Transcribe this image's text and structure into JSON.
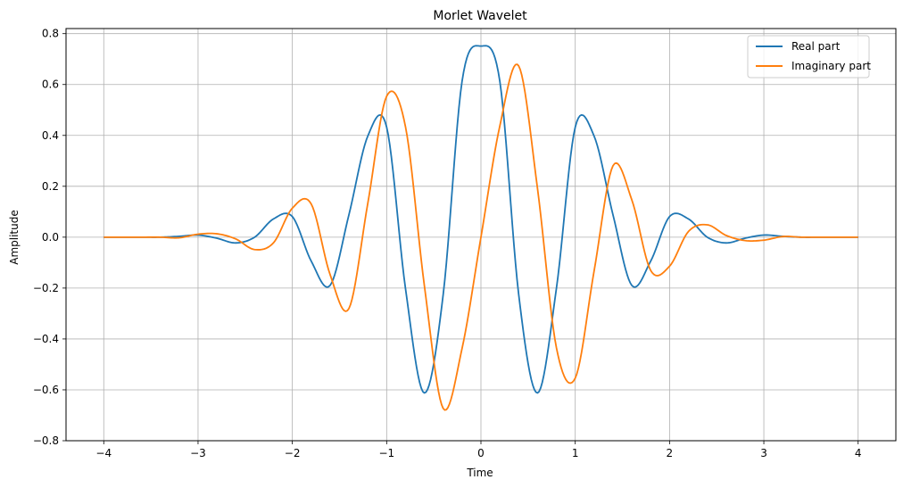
{
  "chart_data": {
    "type": "line",
    "title": "Morlet Wavelet",
    "xlabel": "Time",
    "ylabel": "Amplitude",
    "xlim": [
      -4.4,
      4.4
    ],
    "ylim": [
      -0.8,
      0.82
    ],
    "x_ticks": [
      -4,
      -3,
      -2,
      -1,
      0,
      1,
      2,
      3,
      4
    ],
    "x_tick_labels": [
      "−4",
      "−3",
      "−2",
      "−1",
      "0",
      "1",
      "2",
      "3",
      "4"
    ],
    "y_ticks": [
      -0.8,
      -0.6,
      -0.4,
      -0.2,
      0.0,
      0.2,
      0.4,
      0.6,
      0.8
    ],
    "y_tick_labels": [
      "−0.8",
      "−0.6",
      "−0.4",
      "−0.2",
      "0.0",
      "0.2",
      "0.4",
      "0.6",
      "0.8"
    ],
    "grid": true,
    "legend": "top-right",
    "x": [
      -4.0,
      -3.8,
      -3.6,
      -3.4,
      -3.2,
      -3.0,
      -2.8,
      -2.6,
      -2.4,
      -2.2,
      -2.0,
      -1.8,
      -1.6,
      -1.4,
      -1.2,
      -1.0,
      -0.8,
      -0.6,
      -0.4,
      -0.2,
      0.0,
      0.2,
      0.4,
      0.6,
      0.8,
      1.0,
      1.2,
      1.4,
      1.6,
      1.8,
      2.0,
      2.2,
      2.4,
      2.6,
      2.8,
      3.0,
      3.2,
      3.4,
      3.6,
      3.8,
      4.0
    ],
    "series": [
      {
        "name": "Real part",
        "color": "#1f77b4",
        "values": [
          0.0,
          0.0,
          0.0,
          0.0,
          0.0033,
          0.0083,
          -0.0042,
          -0.0226,
          0.0,
          0.0718,
          0.0809,
          -0.094,
          -0.1896,
          0.0883,
          0.3972,
          0.4325,
          -0.2023,
          -0.6123,
          -0.2242,
          0.6134,
          0.7511,
          0.6134,
          -0.2242,
          -0.6123,
          -0.2023,
          0.4325,
          0.3972,
          0.0883,
          -0.1896,
          -0.094,
          0.0809,
          0.0718,
          0.0,
          -0.0226,
          -0.0042,
          0.0083,
          0.0033,
          0.0,
          0.0,
          0.0,
          0.0
        ]
      },
      {
        "name": "Imaginary part",
        "color": "#ff7f0e",
        "values": [
          0.0,
          0.0,
          0.0,
          0.0,
          -0.0024,
          0.0117,
          0.0133,
          -0.0069,
          -0.0486,
          -0.0221,
          0.1141,
          0.1306,
          -0.1466,
          -0.2804,
          0.1327,
          0.5539,
          0.4338,
          -0.1904,
          -0.6734,
          -0.4368,
          0.0,
          0.4368,
          0.6734,
          0.1904,
          -0.4338,
          -0.5539,
          -0.1327,
          0.2804,
          0.1466,
          -0.1306,
          -0.1141,
          0.0221,
          0.0486,
          0.0069,
          -0.0133,
          -0.0117,
          0.0024,
          0.0,
          0.0,
          0.0,
          0.0
        ]
      }
    ]
  }
}
